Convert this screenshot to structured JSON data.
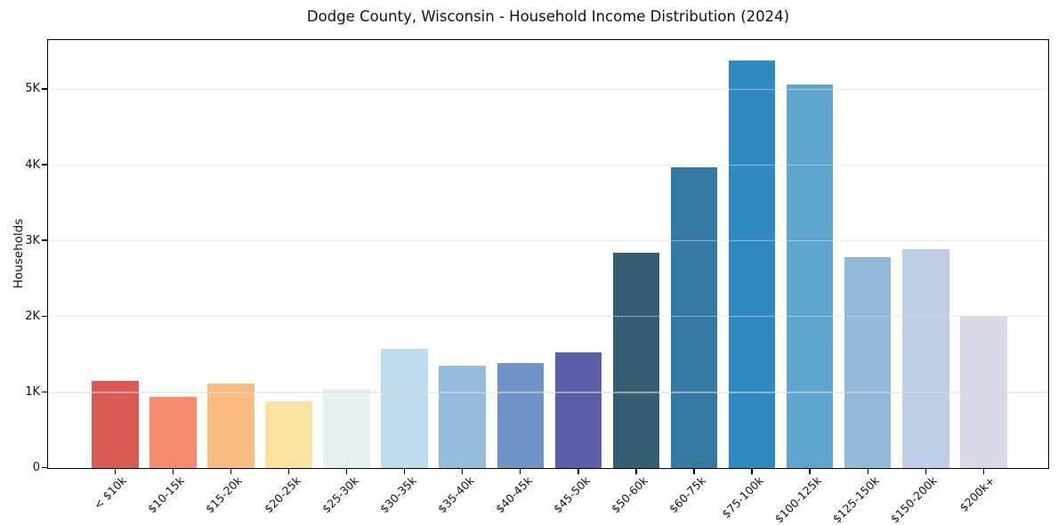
{
  "title": "Dodge County, Wisconsin - Household Income Distribution (2024)",
  "chart_data": {
    "type": "bar",
    "title": "Dodge County, Wisconsin - Household Income Distribution (2024)",
    "xlabel": "",
    "ylabel": "Households",
    "categories": [
      "< $10k",
      "$10-15k",
      "$15-20k",
      "$20-25k",
      "$25-30k",
      "$30-35k",
      "$35-40k",
      "$40-45k",
      "$45-50k",
      "$50-60k",
      "$60-75k",
      "$75-100k",
      "$100-125k",
      "$125-150k",
      "$150-200k",
      "$200k+"
    ],
    "values": [
      1140,
      930,
      1110,
      880,
      1040,
      1570,
      1340,
      1380,
      1520,
      2840,
      3960,
      5370,
      5060,
      2780,
      2880,
      2000
    ],
    "bar_colors": [
      "#d95a53",
      "#f68b6d",
      "#fabc80",
      "#fbe3a2",
      "#e6f1f3",
      "#bddcec",
      "#94bcdc",
      "#6e94c6",
      "#5c5fa8",
      "#365e73",
      "#3578a2",
      "#2f8ac2",
      "#5ea6cd",
      "#92b8da",
      "#becfe7",
      "#d8dae7"
    ],
    "ytick_values": [
      0,
      1000,
      2000,
      3000,
      4000,
      5000
    ],
    "ytick_labels": [
      "0",
      "1K",
      "2K",
      "3K",
      "4K",
      "5K"
    ],
    "ylim": [
      0,
      5640
    ],
    "grid": "horizontal",
    "legend": "none",
    "background_color": "#ffffff",
    "spine_color": "#000000",
    "gridline_color": "#dadee1"
  }
}
